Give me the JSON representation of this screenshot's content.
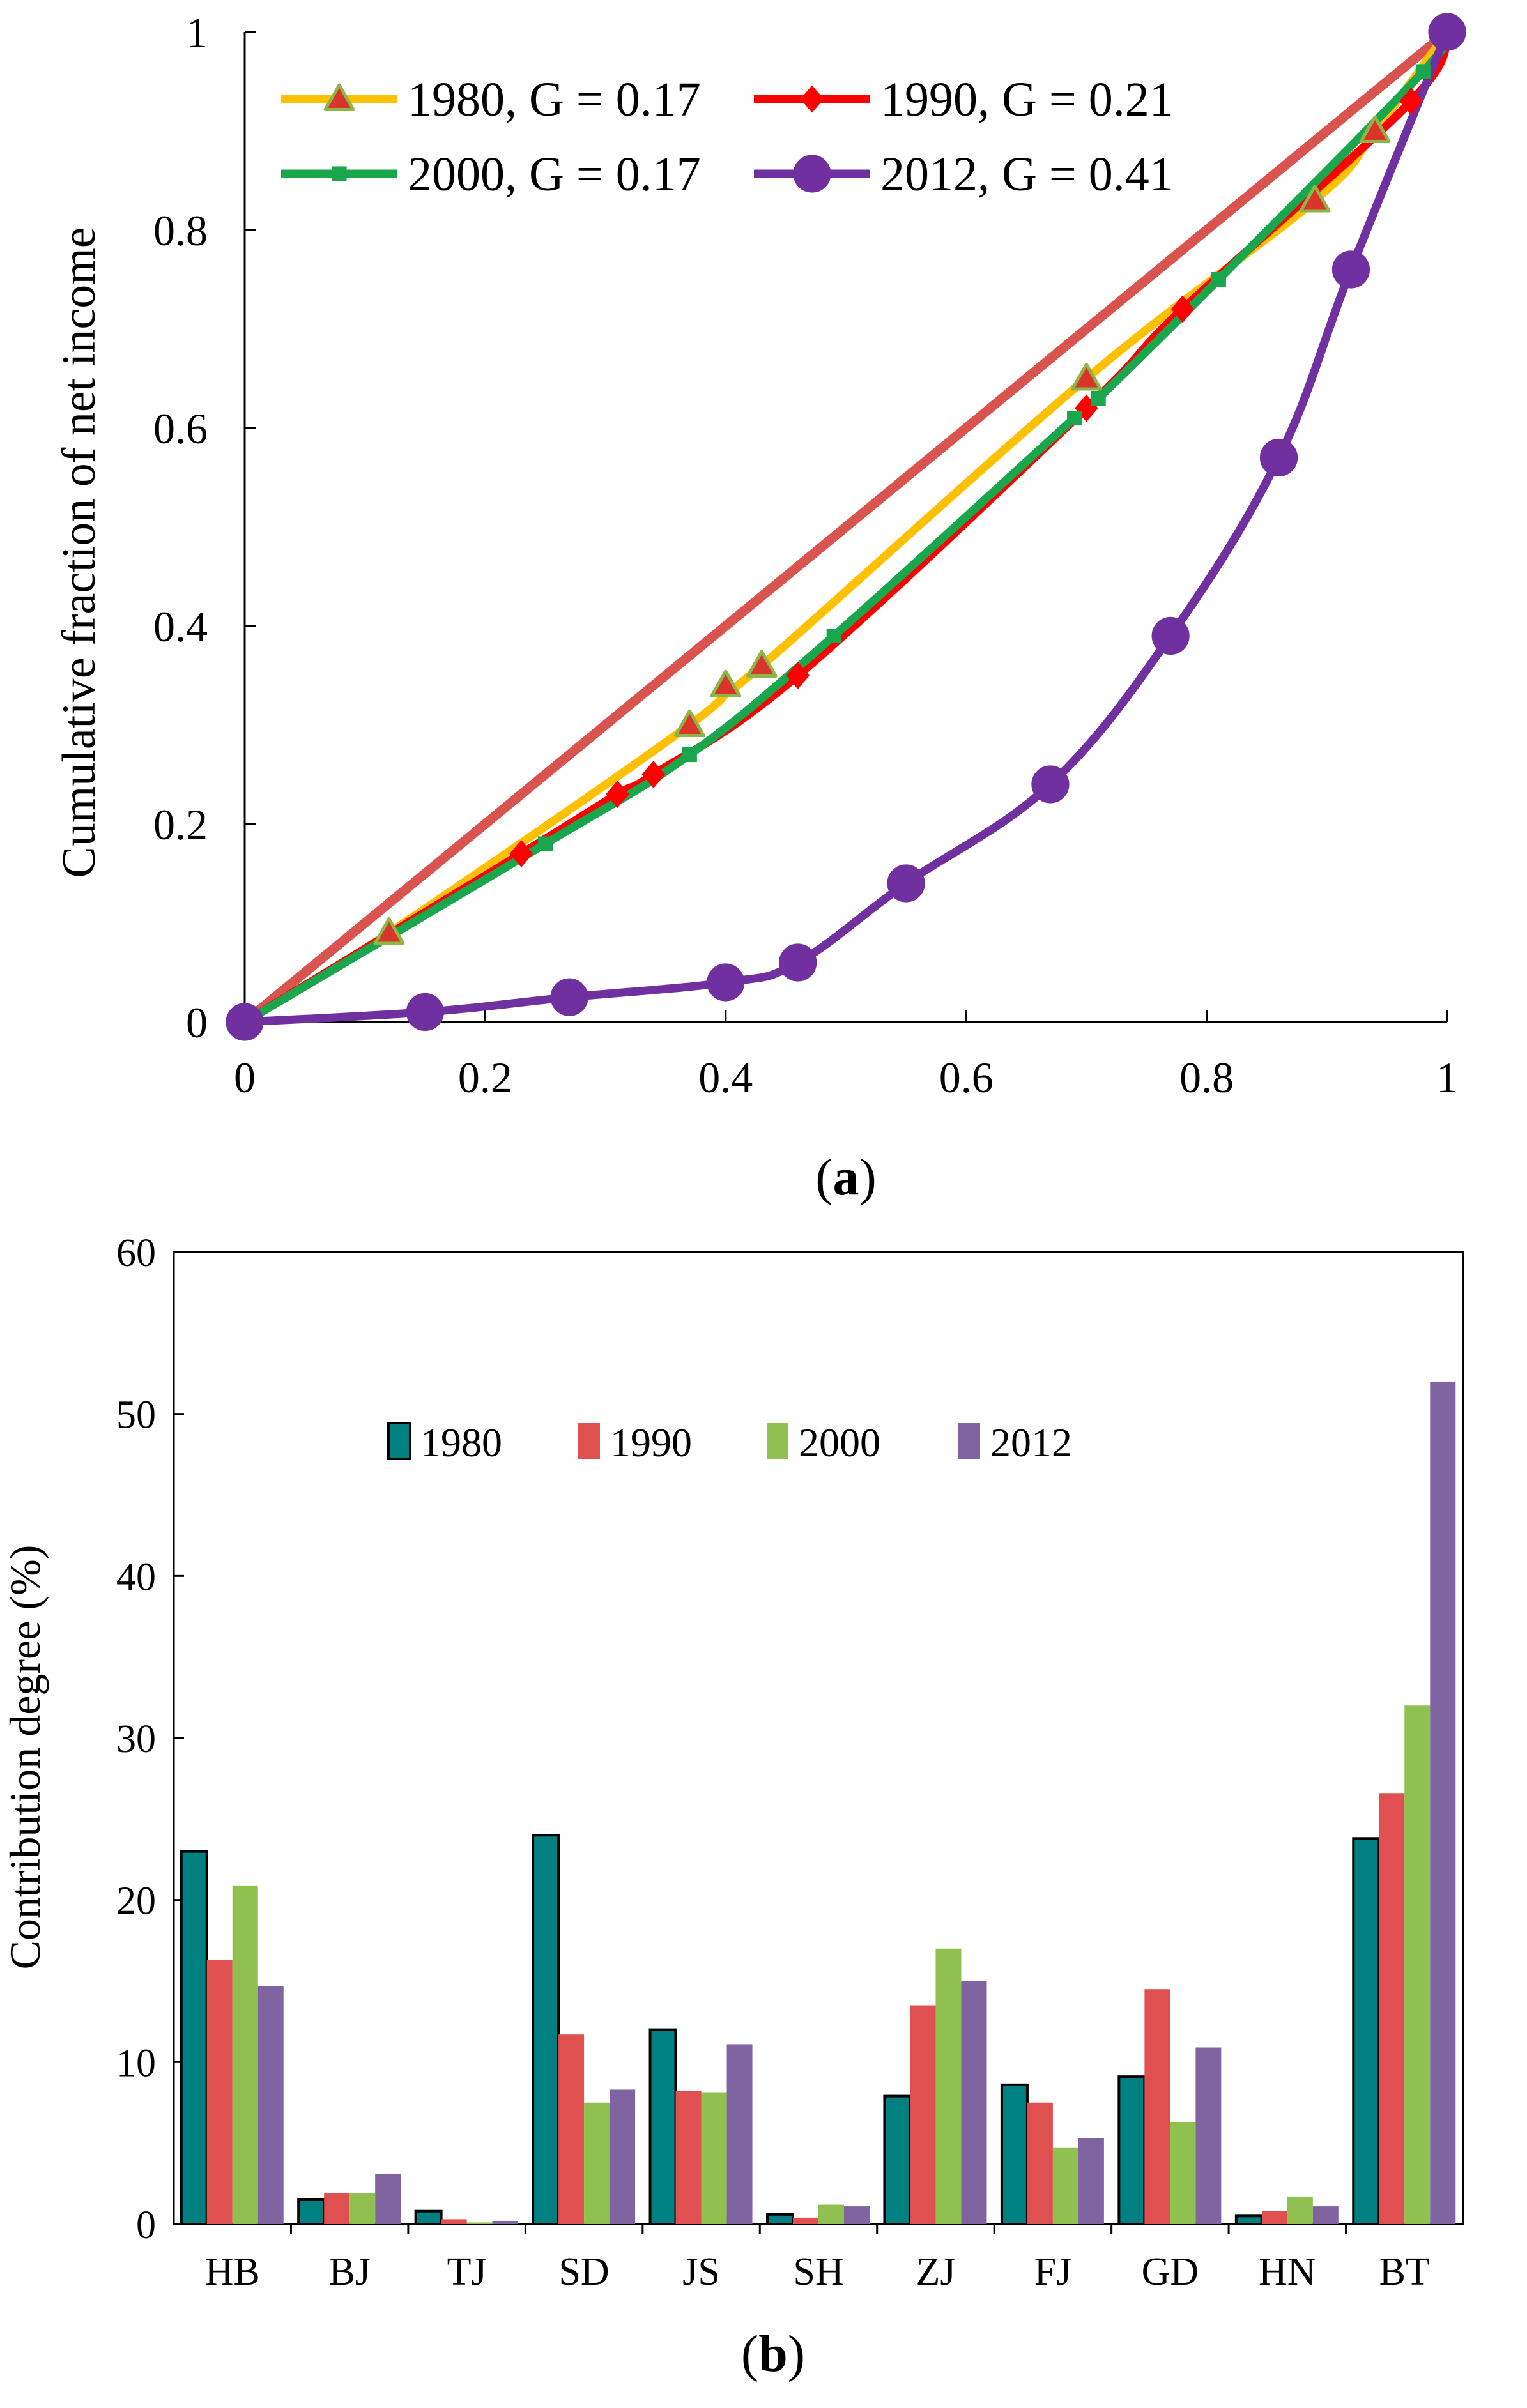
{
  "chart_data": [
    {
      "type": "line",
      "panel_label": "a",
      "title": "",
      "xlabel": "",
      "ylabel": "Cumulative fraction of net income",
      "xlim": [
        0,
        1
      ],
      "ylim": [
        0,
        1
      ],
      "x_ticks": [
        "0",
        "0.2",
        "0.4",
        "0.6",
        "0.8",
        "1"
      ],
      "y_ticks": [
        "0",
        "0.2",
        "0.4",
        "0.6",
        "0.8",
        "1"
      ],
      "grid": false,
      "legend_position": "top-left",
      "reference_line": {
        "x": [
          0,
          1
        ],
        "y": [
          0,
          1
        ],
        "color": "#d9534f"
      },
      "series": [
        {
          "name": "1980, G = 0.17",
          "color": "#ffc000",
          "marker": "triangle",
          "marker_color": "#d9352a",
          "marker_edge": "#8fb547",
          "x": [
            0,
            0.12,
            0.37,
            0.4,
            0.43,
            0.7,
            0.89,
            0.94,
            1
          ],
          "y": [
            0,
            0.09,
            0.3,
            0.34,
            0.36,
            0.65,
            0.83,
            0.9,
            1
          ]
        },
        {
          "name": "1990, G = 0.21",
          "color": "#ff0000",
          "marker": "diamond",
          "marker_color": "#ff0000",
          "marker_edge": "#ff0000",
          "x": [
            0,
            0.23,
            0.31,
            0.34,
            0.46,
            0.7,
            0.78,
            0.97,
            1
          ],
          "y": [
            0,
            0.17,
            0.23,
            0.25,
            0.35,
            0.62,
            0.72,
            0.93,
            1
          ]
        },
        {
          "name": "2000, G = 0.17",
          "color": "#1aa64c",
          "marker": "square",
          "marker_color": "#1aa64c",
          "marker_edge": "#1aa64c",
          "x": [
            0,
            0.25,
            0.37,
            0.49,
            0.69,
            0.71,
            0.81,
            0.98,
            1
          ],
          "y": [
            0,
            0.18,
            0.27,
            0.39,
            0.61,
            0.63,
            0.75,
            0.96,
            1
          ]
        },
        {
          "name": "2012, G = 0.41",
          "color": "#7030a0",
          "marker": "circle",
          "marker_color": "#7030a0",
          "marker_edge": "#7030a0",
          "x": [
            0,
            0.15,
            0.27,
            0.4,
            0.46,
            0.55,
            0.67,
            0.77,
            0.86,
            0.92,
            1
          ],
          "y": [
            0,
            0.01,
            0.025,
            0.04,
            0.06,
            0.14,
            0.24,
            0.39,
            0.57,
            0.76,
            1
          ]
        }
      ]
    },
    {
      "type": "bar",
      "panel_label": "b",
      "title": "",
      "xlabel": "",
      "ylabel": "Contribution degree (%)",
      "ylim": [
        0,
        60
      ],
      "y_ticks": [
        "0",
        "10",
        "20",
        "30",
        "40",
        "50",
        "60"
      ],
      "grid": false,
      "legend_position": "top-center",
      "categories": [
        "HB",
        "BJ",
        "TJ",
        "SD",
        "JS",
        "SH",
        "ZJ",
        "FJ",
        "GD",
        "HN",
        "BT"
      ],
      "series": [
        {
          "name": "1980",
          "color": "#008080",
          "edge": "#000000",
          "values": [
            23,
            1.5,
            0.8,
            24,
            12,
            0.6,
            7.9,
            8.6,
            9.1,
            0.5,
            23.8
          ]
        },
        {
          "name": "1990",
          "color": "#e05050",
          "edge": "",
          "values": [
            16.3,
            1.9,
            0.3,
            11.7,
            8.2,
            0.4,
            13.5,
            7.5,
            14.5,
            0.8,
            26.6
          ]
        },
        {
          "name": "2000",
          "color": "#8fc050",
          "edge": "",
          "values": [
            20.9,
            1.9,
            0.1,
            7.5,
            8.1,
            1.2,
            17,
            4.7,
            6.3,
            1.7,
            32
          ]
        },
        {
          "name": "2012",
          "color": "#8064a2",
          "edge": "",
          "values": [
            14.7,
            3.1,
            0.2,
            8.3,
            11.1,
            1.1,
            15,
            5.3,
            10.9,
            1.1,
            52
          ]
        }
      ]
    }
  ]
}
